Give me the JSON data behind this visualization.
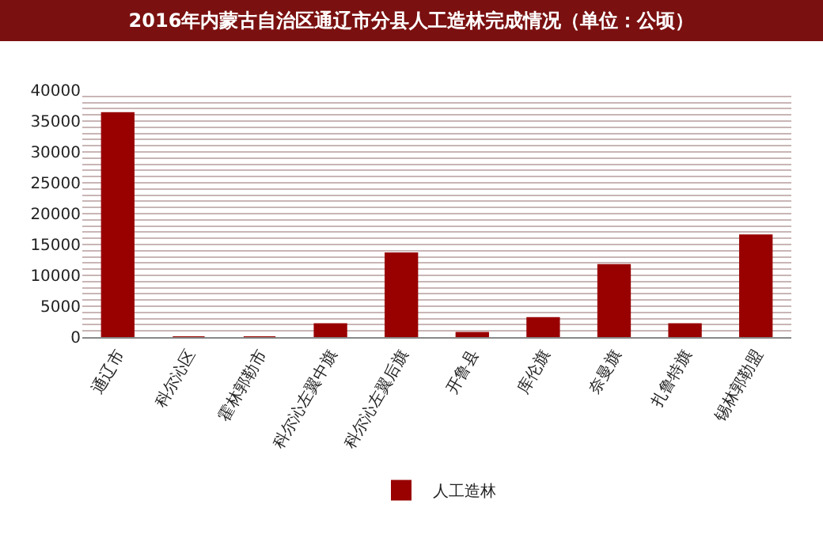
{
  "chart_data": {
    "type": "bar",
    "title": "2016年内蒙古自治区通辽市分县人工造林完成情况（单位：公顷）",
    "categories": [
      "通辽市",
      "科尔沁区",
      "霍林郭勒市",
      "科尔沁左翼中旗",
      "科尔沁左翼后旗",
      "开鲁县",
      "库伦旗",
      "奈曼旗",
      "扎鲁特旗",
      "锡林郭勒盟"
    ],
    "series": [
      {
        "name": "人工造林",
        "color": "#990000",
        "values": [
          36300,
          0,
          0,
          2100,
          13600,
          700,
          3100,
          11700,
          2100,
          16500
        ]
      }
    ],
    "ylim": [
      0,
      40000
    ],
    "yticks": [
      0,
      {
        "value": 1000,
        "label": null
      },
      {
        "value": 2000,
        "label": null
      },
      {
        "value": 3000,
        "label": null
      },
      {
        "value": 4000,
        "label": null
      },
      5000,
      {
        "value": 6000,
        "label": null
      },
      {
        "value": 7000,
        "label": null
      },
      {
        "value": 8000,
        "label": null
      },
      {
        "value": 9000,
        "label": null
      },
      10000,
      {
        "value": 11000,
        "label": null
      },
      {
        "value": 12000,
        "label": null
      },
      {
        "value": 13000,
        "label": null
      },
      {
        "value": 14000,
        "label": null
      },
      15000,
      {
        "value": 16000,
        "label": null
      },
      {
        "value": 17000,
        "label": null
      },
      {
        "value": 18000,
        "label": null
      },
      {
        "value": 19000,
        "label": null
      },
      20000,
      {
        "value": 21000,
        "label": null
      },
      {
        "value": 22000,
        "label": null
      },
      {
        "value": 23000,
        "label": null
      },
      {
        "value": 24000,
        "label": null
      },
      25000,
      {
        "value": 26000,
        "label": null
      },
      {
        "value": 27000,
        "label": null
      },
      {
        "value": 28000,
        "label": null
      },
      {
        "value": 29000,
        "label": null
      },
      30000,
      {
        "value": 31000,
        "label": null
      },
      {
        "value": 32000,
        "label": null
      },
      {
        "value": 33000,
        "label": null
      },
      {
        "value": 34000,
        "label": null
      },
      35000,
      {
        "value": 36000,
        "label": null
      },
      {
        "value": 37000,
        "label": null
      },
      {
        "value": 38000,
        "label": null
      },
      {
        "value": 39000,
        "label": null
      },
      40000
    ],
    "grid": "y",
    "legend": "bottom"
  }
}
